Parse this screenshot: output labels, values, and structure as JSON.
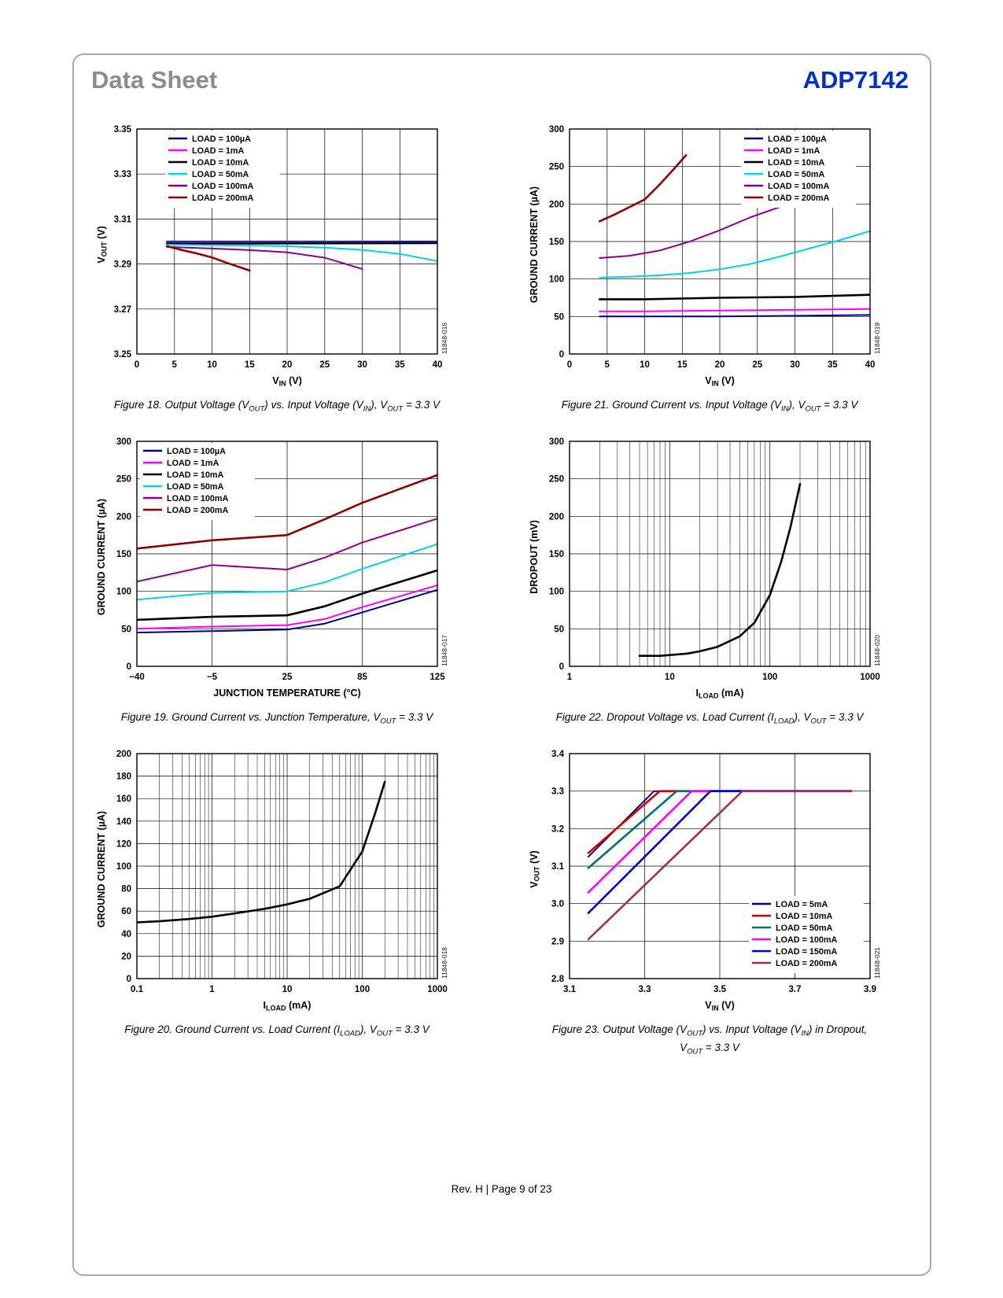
{
  "page": {
    "header_left": "Data Sheet",
    "header_right": "ADP7142",
    "footer": "Rev. H | Page 9 of 23"
  },
  "chart_data": [
    {
      "id": "figure-18",
      "type": "line",
      "caption": "Figure 18. Output Voltage (V~OUT~) vs. Input Voltage (V~IN~), V~OUT~ = 3.3 V",
      "watermark": "11848-016",
      "xlabel": "V~IN~ (V)",
      "ylabel": "V~OUT~ (V)",
      "xscale": "linear",
      "xlim": [
        0,
        40
      ],
      "xticks": [
        0,
        5,
        10,
        15,
        20,
        25,
        30,
        35,
        40
      ],
      "xtick_labels": [
        "0",
        "5",
        "10",
        "15",
        "20",
        "25",
        "30",
        "35",
        "40"
      ],
      "ylim": [
        3.25,
        3.35
      ],
      "yticks": [
        3.25,
        3.27,
        3.29,
        3.31,
        3.33,
        3.35
      ],
      "ytick_labels": [
        "3.25",
        "3.27",
        "3.29",
        "3.31",
        "3.33",
        "3.35"
      ],
      "grid": true,
      "legend": {
        "position": "top-left",
        "dx": 40
      },
      "series": [
        {
          "name": "LOAD = 100µA",
          "color": "#000082",
          "width": 2,
          "x": [
            4,
            40
          ],
          "y": [
            3.3,
            3.3
          ]
        },
        {
          "name": "LOAD = 1mA",
          "color": "#FF00FF",
          "width": 2,
          "x": [
            4,
            40
          ],
          "y": [
            3.2996,
            3.2996
          ]
        },
        {
          "name": "LOAD = 10mA",
          "color": "#000000",
          "width": 2.6,
          "x": [
            4,
            40
          ],
          "y": [
            3.2991,
            3.2993
          ]
        },
        {
          "name": "LOAD = 50mA",
          "color": "#00D2E6",
          "width": 2,
          "x": [
            4,
            10,
            15,
            20,
            25,
            30,
            35,
            40
          ],
          "y": [
            3.2986,
            3.2984,
            3.2982,
            3.2979,
            3.2973,
            3.2963,
            3.2945,
            3.2913
          ]
        },
        {
          "name": "LOAD = 100mA",
          "color": "#8B008B",
          "width": 2,
          "x": [
            4,
            10,
            15,
            20,
            25,
            30
          ],
          "y": [
            3.2976,
            3.2969,
            3.2962,
            3.2952,
            3.2928,
            3.2878
          ]
        },
        {
          "name": "LOAD = 200mA",
          "color": "#8B0000",
          "width": 2.6,
          "x": [
            4,
            6,
            8,
            10,
            12,
            15
          ],
          "y": [
            3.2979,
            3.2962,
            3.2947,
            3.2929,
            3.2905,
            3.2871
          ]
        }
      ]
    },
    {
      "id": "figure-21",
      "type": "line",
      "caption": "Figure 21. Ground Current vs. Input Voltage (V~IN~), V~OUT~ = 3.3 V",
      "watermark": "11848-019",
      "xlabel": "V~IN~ (V)",
      "ylabel": "GROUND CURRENT (µA)",
      "xscale": "linear",
      "xlim": [
        0,
        40
      ],
      "xticks": [
        0,
        5,
        10,
        15,
        20,
        25,
        30,
        35,
        40
      ],
      "xtick_labels": [
        "0",
        "5",
        "10",
        "15",
        "20",
        "25",
        "30",
        "35",
        "40"
      ],
      "ylim": [
        0,
        300
      ],
      "yticks": [
        0,
        50,
        100,
        150,
        200,
        250,
        300
      ],
      "ytick_labels": [
        "0",
        "50",
        "100",
        "150",
        "200",
        "250",
        "300"
      ],
      "grid": true,
      "legend": {
        "position": "top-right"
      },
      "series": [
        {
          "name": "LOAD = 100µA",
          "color": "#000082",
          "width": 2,
          "x": [
            4,
            10,
            20,
            30,
            40
          ],
          "y": [
            50,
            50,
            50,
            51,
            52
          ]
        },
        {
          "name": "LOAD = 1mA",
          "color": "#FF00FF",
          "width": 2,
          "x": [
            4,
            10,
            20,
            30,
            40
          ],
          "y": [
            57,
            57,
            58,
            59,
            60
          ]
        },
        {
          "name": "LOAD = 10mA",
          "color": "#000000",
          "width": 2.6,
          "x": [
            4,
            10,
            20,
            30,
            40
          ],
          "y": [
            73,
            73,
            75,
            76,
            79
          ]
        },
        {
          "name": "LOAD = 50mA",
          "color": "#00D2E6",
          "width": 2,
          "x": [
            4,
            8,
            12,
            16,
            20,
            24,
            28,
            32,
            36,
            40
          ],
          "y": [
            102,
            103,
            105,
            108,
            113,
            120,
            130,
            141,
            152,
            164
          ]
        },
        {
          "name": "LOAD = 100mA",
          "color": "#8B008B",
          "width": 2,
          "x": [
            4,
            8,
            12,
            16,
            20,
            24,
            28,
            31
          ],
          "y": [
            128,
            131,
            138,
            150,
            165,
            182,
            196,
            211
          ]
        },
        {
          "name": "LOAD = 200mA",
          "color": "#8B0000",
          "width": 2.6,
          "x": [
            4,
            6,
            8,
            10,
            12,
            14,
            15.5
          ],
          "y": [
            177,
            186,
            196,
            206,
            226,
            248,
            265
          ]
        }
      ]
    },
    {
      "id": "figure-19",
      "type": "line",
      "caption": "Figure 19. Ground Current vs. Junction Temperature, V~OUT~ = 3.3 V",
      "watermark": "11848-017",
      "xlabel": "JUNCTION TEMPERATURE (°C)",
      "ylabel": "GROUND CURRENT (µA)",
      "xscale": "even",
      "xlim": [
        -40,
        125
      ],
      "xticks": [
        -40,
        -5,
        25,
        85,
        125
      ],
      "xtick_labels": [
        "−40",
        "−5",
        "25",
        "85",
        "125"
      ],
      "ylim": [
        0,
        300
      ],
      "yticks": [
        0,
        50,
        100,
        150,
        200,
        250,
        300
      ],
      "ytick_labels": [
        "0",
        "50",
        "100",
        "150",
        "200",
        "250",
        "300"
      ],
      "grid": true,
      "legend": {
        "position": "top-left",
        "dx": 8
      },
      "series": [
        {
          "name": "LOAD = 100µA",
          "color": "#000082",
          "width": 2,
          "x": [
            -40,
            -5,
            25,
            55,
            85,
            125
          ],
          "y": [
            45,
            47,
            49,
            57,
            72,
            102
          ]
        },
        {
          "name": "LOAD = 1mA",
          "color": "#FF00FF",
          "width": 2,
          "x": [
            -40,
            -5,
            25,
            55,
            85,
            125
          ],
          "y": [
            50,
            53,
            55,
            63,
            79,
            108
          ]
        },
        {
          "name": "LOAD = 10mA",
          "color": "#000000",
          "width": 2.6,
          "x": [
            -40,
            -5,
            25,
            55,
            85,
            125
          ],
          "y": [
            62,
            66,
            68,
            80,
            97,
            128
          ]
        },
        {
          "name": "LOAD = 50mA",
          "color": "#00D2E6",
          "width": 2,
          "x": [
            -40,
            -5,
            25,
            55,
            85,
            125
          ],
          "y": [
            89,
            98,
            100,
            112,
            130,
            163
          ]
        },
        {
          "name": "LOAD = 100mA",
          "color": "#8B008B",
          "width": 2,
          "x": [
            -40,
            -5,
            25,
            55,
            85,
            125
          ],
          "y": [
            113,
            135,
            129,
            145,
            165,
            197
          ]
        },
        {
          "name": "LOAD = 200mA",
          "color": "#8B0000",
          "width": 2.6,
          "x": [
            -40,
            -5,
            25,
            55,
            85,
            125
          ],
          "y": [
            157,
            168,
            175,
            196,
            218,
            255
          ]
        }
      ]
    },
    {
      "id": "figure-22",
      "type": "line",
      "caption": "Figure 22. Dropout Voltage vs. Load Current (I~LOAD~), V~OUT~ = 3.3 V",
      "watermark": "11848-020",
      "xlabel": "I~LOAD~ (mA)",
      "ylabel": "DROPOUT (mV)",
      "xscale": "log",
      "xlim": [
        1,
        1000
      ],
      "xticks": [
        1,
        10,
        100,
        1000
      ],
      "xtick_labels": [
        "1",
        "10",
        "100",
        "1000"
      ],
      "ylim": [
        0,
        300
      ],
      "yticks": [
        0,
        50,
        100,
        150,
        200,
        250,
        300
      ],
      "ytick_labels": [
        "0",
        "50",
        "100",
        "150",
        "200",
        "250",
        "300"
      ],
      "grid": true,
      "series": [
        {
          "name": "DROPOUT",
          "color": "#000000",
          "width": 2.6,
          "x": [
            5,
            8,
            10,
            15,
            20,
            30,
            50,
            70,
            100,
            130,
            160,
            200
          ],
          "y": [
            14,
            14,
            15,
            17,
            20,
            26,
            40,
            58,
            95,
            140,
            185,
            243
          ]
        }
      ]
    },
    {
      "id": "figure-20",
      "type": "line",
      "caption": "Figure 20. Ground Current vs. Load Current (I~LOAD~), V~OUT~ = 3.3 V",
      "watermark": "11848-018",
      "xlabel": "I~LOAD~ (mA)",
      "ylabel": "GROUND CURRENT (µA)",
      "xscale": "log",
      "xlim": [
        0.1,
        1000
      ],
      "xticks": [
        0.1,
        1,
        10,
        100,
        1000
      ],
      "xtick_labels": [
        "0.1",
        "1",
        "10",
        "100",
        "1000"
      ],
      "ylim": [
        0,
        200
      ],
      "yticks": [
        0,
        20,
        40,
        60,
        80,
        100,
        120,
        140,
        160,
        180,
        200
      ],
      "ytick_labels": [
        "0",
        "20",
        "40",
        "60",
        "80",
        "100",
        "120",
        "140",
        "160",
        "180",
        "200"
      ],
      "grid": true,
      "series": [
        {
          "name": "GROUND CURRENT",
          "color": "#000000",
          "width": 2.6,
          "x": [
            0.1,
            0.2,
            0.5,
            1,
            2,
            5,
            10,
            20,
            50,
            100,
            150,
            200
          ],
          "y": [
            50,
            51,
            53,
            55,
            58,
            62,
            66,
            71,
            82,
            113,
            148,
            175
          ]
        }
      ]
    },
    {
      "id": "figure-23",
      "type": "line",
      "caption": "Figure 23. Output Voltage (V~OUT~) vs. Input Voltage (V~IN~) in Dropout,",
      "caption2": "V~OUT~ = 3.3 V",
      "watermark": "11848-021",
      "xlabel": "V~IN~ (V)",
      "ylabel": "V~OUT~ (V)",
      "xscale": "linear",
      "xlim": [
        3.1,
        3.9
      ],
      "xticks": [
        3.1,
        3.3,
        3.5,
        3.7,
        3.9
      ],
      "xtick_labels": [
        "3.1",
        "3.3",
        "3.5",
        "3.7",
        "3.9"
      ],
      "ylim": [
        2.8,
        3.4
      ],
      "yticks": [
        2.8,
        2.9,
        3.0,
        3.1,
        3.2,
        3.3,
        3.4
      ],
      "ytick_labels": [
        "2.8",
        "2.9",
        "3.0",
        "3.1",
        "3.2",
        "3.3",
        "3.4"
      ],
      "grid": true,
      "legend": {
        "position": "bottom-right"
      },
      "series": [
        {
          "name": "LOAD = 5mA",
          "color": "#000082",
          "width": 2,
          "x": [
            3.15,
            3.325,
            3.85
          ],
          "y": [
            3.125,
            3.3,
            3.3
          ]
        },
        {
          "name": "LOAD = 10mA",
          "color": "#CC0000",
          "width": 2.6,
          "x": [
            3.15,
            3.34,
            3.85
          ],
          "y": [
            3.135,
            3.3,
            3.3
          ]
        },
        {
          "name": "LOAD = 50mA",
          "color": "#007070",
          "width": 2.6,
          "x": [
            3.15,
            3.385,
            3.85
          ],
          "y": [
            3.095,
            3.3,
            3.3
          ]
        },
        {
          "name": "LOAD = 100mA",
          "color": "#FF00FF",
          "width": 2.6,
          "x": [
            3.15,
            3.425,
            3.85
          ],
          "y": [
            3.03,
            3.3,
            3.3
          ]
        },
        {
          "name": "LOAD = 150mA",
          "color": "#0000CC",
          "width": 2.6,
          "x": [
            3.15,
            3.475,
            3.85
          ],
          "y": [
            2.975,
            3.3,
            3.3
          ]
        },
        {
          "name": "LOAD = 200mA",
          "color": "#993355",
          "width": 2.6,
          "x": [
            3.15,
            3.56,
            3.85
          ],
          "y": [
            2.905,
            3.3,
            3.3
          ]
        }
      ]
    }
  ]
}
